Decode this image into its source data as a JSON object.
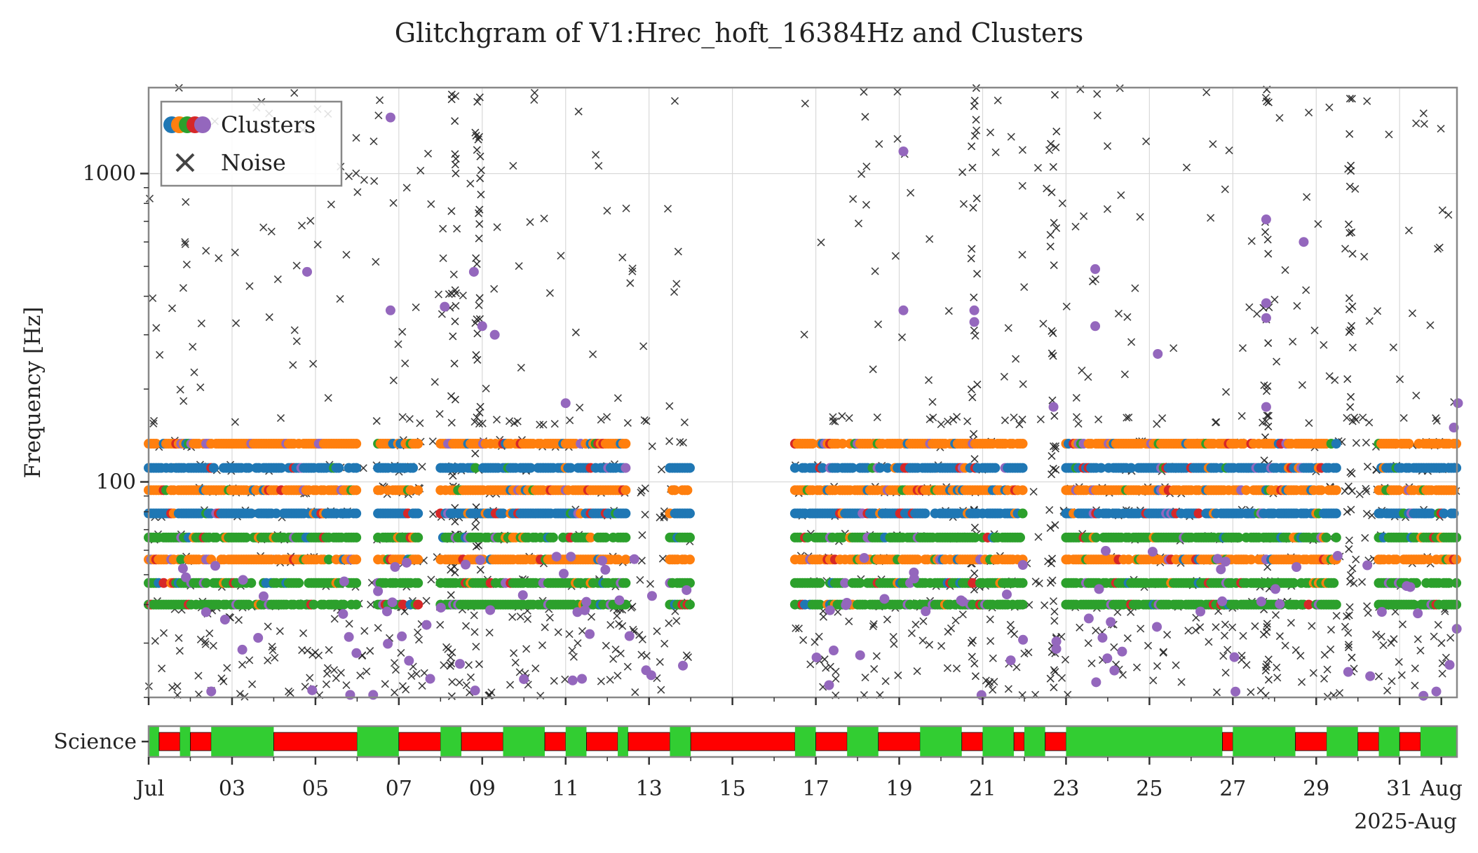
{
  "chart_data": {
    "type": "scatter",
    "title": "Glitchgram of V1:Hrec_hoft_16384Hz and Clusters",
    "ylabel": "Frequency [Hz]",
    "xlabel": "",
    "x_units": "date (day of month, 2025)",
    "xlim": [
      "2025-07-01",
      "2025-08-01 09:00"
    ],
    "ylim": [
      20,
      1900
    ],
    "y_scale": "log",
    "grid": true,
    "legend": {
      "placement": "top-left",
      "entries": [
        "Clusters",
        "Noise"
      ]
    },
    "x_ticks": [
      "Jul",
      "03",
      "05",
      "07",
      "09",
      "11",
      "13",
      "15",
      "17",
      "19",
      "21",
      "23",
      "25",
      "27",
      "29",
      "31",
      "Aug"
    ],
    "x_offset_label": "2025-Aug",
    "y_ticks": [
      "100",
      "1000"
    ],
    "colors": {
      "cluster_blue": "#1f77b4",
      "cluster_orange": "#ff7f0e",
      "cluster_green": "#2ca02c",
      "cluster_red": "#d62728",
      "cluster_purple": "#9467bd",
      "noise": "#222222",
      "science_on": "#32cd32",
      "science_off": "#ff0000"
    },
    "frequency_bands_hz": [
      40,
      47,
      56,
      66,
      79,
      94,
      111,
      133,
      158
    ],
    "cluster_segments": [
      {
        "start": "2025-07-01",
        "end": "2025-07-06",
        "bands": [
          40,
          47,
          56,
          66,
          79,
          94,
          111,
          133
        ]
      },
      {
        "start": "2025-07-06 12:00",
        "end": "2025-07-07 12:00",
        "bands": [
          40,
          47,
          56,
          66,
          79,
          94,
          111,
          133
        ]
      },
      {
        "start": "2025-07-08",
        "end": "2025-07-12 12:00",
        "bands": [
          40,
          47,
          56,
          66,
          79,
          94,
          111,
          133
        ]
      },
      {
        "start": "2025-07-13 12:00",
        "end": "2025-07-14",
        "bands": [
          40,
          47,
          56,
          66,
          79,
          94,
          111
        ]
      },
      {
        "start": "2025-07-16 12:00",
        "end": "2025-07-22",
        "bands": [
          40,
          47,
          56,
          66,
          79,
          94,
          111,
          133
        ]
      },
      {
        "start": "2025-07-23",
        "end": "2025-07-29 12:00",
        "bands": [
          40,
          47,
          56,
          66,
          79,
          94,
          111,
          133
        ]
      },
      {
        "start": "2025-07-30 12:00",
        "end": "2025-08-01 09:00",
        "bands": [
          40,
          47,
          56,
          66,
          79,
          94,
          111,
          133
        ]
      }
    ],
    "noise_region": {
      "x_start": "2025-07-01",
      "x_end": "2025-08-01 09:00",
      "y_min": 20,
      "y_max": 1900,
      "note_gap": [
        "2025-07-14",
        "2025-07-16 12:00"
      ]
    },
    "science_segments": [
      {
        "start": "2025-07-01",
        "end": "2025-07-01 06:00",
        "state": "on"
      },
      {
        "start": "2025-07-01 06:00",
        "end": "2025-07-01 18:00",
        "state": "off"
      },
      {
        "start": "2025-07-01 18:00",
        "end": "2025-07-02",
        "state": "on"
      },
      {
        "start": "2025-07-02",
        "end": "2025-07-02 12:00",
        "state": "off"
      },
      {
        "start": "2025-07-02 12:00",
        "end": "2025-07-04",
        "state": "on"
      },
      {
        "start": "2025-07-04",
        "end": "2025-07-06",
        "state": "off"
      },
      {
        "start": "2025-07-06",
        "end": "2025-07-07",
        "state": "on"
      },
      {
        "start": "2025-07-07",
        "end": "2025-07-08",
        "state": "off"
      },
      {
        "start": "2025-07-08",
        "end": "2025-07-08 12:00",
        "state": "on"
      },
      {
        "start": "2025-07-08 12:00",
        "end": "2025-07-09 12:00",
        "state": "off"
      },
      {
        "start": "2025-07-09 12:00",
        "end": "2025-07-10 12:00",
        "state": "on"
      },
      {
        "start": "2025-07-10 12:00",
        "end": "2025-07-11",
        "state": "off"
      },
      {
        "start": "2025-07-11",
        "end": "2025-07-11 12:00",
        "state": "on"
      },
      {
        "start": "2025-07-11 12:00",
        "end": "2025-07-12 06:00",
        "state": "off"
      },
      {
        "start": "2025-07-12 06:00",
        "end": "2025-07-12 12:00",
        "state": "on"
      },
      {
        "start": "2025-07-12 12:00",
        "end": "2025-07-13 12:00",
        "state": "off"
      },
      {
        "start": "2025-07-13 12:00",
        "end": "2025-07-14",
        "state": "on"
      },
      {
        "start": "2025-07-14",
        "end": "2025-07-16 12:00",
        "state": "off"
      },
      {
        "start": "2025-07-16 12:00",
        "end": "2025-07-17",
        "state": "on"
      },
      {
        "start": "2025-07-17",
        "end": "2025-07-17 18:00",
        "state": "off"
      },
      {
        "start": "2025-07-17 18:00",
        "end": "2025-07-18 12:00",
        "state": "on"
      },
      {
        "start": "2025-07-18 12:00",
        "end": "2025-07-19 12:00",
        "state": "off"
      },
      {
        "start": "2025-07-19 12:00",
        "end": "2025-07-20 12:00",
        "state": "on"
      },
      {
        "start": "2025-07-20 12:00",
        "end": "2025-07-21",
        "state": "off"
      },
      {
        "start": "2025-07-21",
        "end": "2025-07-21 18:00",
        "state": "on"
      },
      {
        "start": "2025-07-21 18:00",
        "end": "2025-07-22",
        "state": "off"
      },
      {
        "start": "2025-07-22",
        "end": "2025-07-22 12:00",
        "state": "on"
      },
      {
        "start": "2025-07-22 12:00",
        "end": "2025-07-23",
        "state": "off"
      },
      {
        "start": "2025-07-23",
        "end": "2025-07-26 18:00",
        "state": "on"
      },
      {
        "start": "2025-07-26 18:00",
        "end": "2025-07-27",
        "state": "off"
      },
      {
        "start": "2025-07-27",
        "end": "2025-07-28 12:00",
        "state": "on"
      },
      {
        "start": "2025-07-28 12:00",
        "end": "2025-07-29 06:00",
        "state": "off"
      },
      {
        "start": "2025-07-29 06:00",
        "end": "2025-07-30",
        "state": "on"
      },
      {
        "start": "2025-07-30",
        "end": "2025-07-30 12:00",
        "state": "off"
      },
      {
        "start": "2025-07-30 12:00",
        "end": "2025-07-31",
        "state": "on"
      },
      {
        "start": "2025-07-31",
        "end": "2025-07-31 12:00",
        "state": "off"
      },
      {
        "start": "2025-07-31 12:00",
        "end": "2025-08-01 09:00",
        "state": "on"
      }
    ],
    "science_label": "Science"
  }
}
